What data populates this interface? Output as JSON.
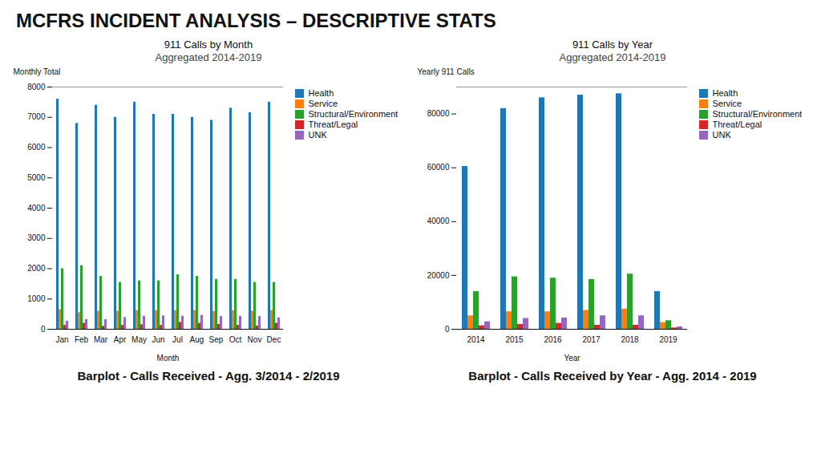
{
  "title": "MCFRS INCIDENT ANALYSIS – DESCRIPTIVE STATS",
  "chart_data": [
    {
      "type": "bar",
      "title": "911 Calls by Month",
      "subtitle": "Aggregated 2014-2019",
      "caption": "Barplot - Calls Received - Agg. 3/2014 - 2/2019",
      "xlabel": "Month",
      "ylabel": "Monthly Total",
      "categories": [
        "Jan",
        "Feb",
        "Mar",
        "Apr",
        "May",
        "Jun",
        "Jul",
        "Aug",
        "Sep",
        "Oct",
        "Nov",
        "Dec"
      ],
      "series": [
        {
          "name": "Health",
          "color": "#1f77b4",
          "values": [
            7600,
            6800,
            7400,
            7000,
            7500,
            7100,
            7100,
            7000,
            6900,
            7300,
            7150,
            7500
          ]
        },
        {
          "name": "Service",
          "color": "#ff7f0e",
          "values": [
            650,
            550,
            600,
            600,
            620,
            620,
            620,
            620,
            590,
            620,
            600,
            620
          ]
        },
        {
          "name": "Structural/Environment",
          "color": "#2ca02c",
          "values": [
            2000,
            2100,
            1750,
            1550,
            1600,
            1600,
            1800,
            1750,
            1650,
            1650,
            1550,
            1550
          ]
        },
        {
          "name": "Threat/Legal",
          "color": "#d62728",
          "values": [
            130,
            200,
            100,
            130,
            150,
            130,
            230,
            200,
            160,
            130,
            110,
            200
          ]
        },
        {
          "name": "UNK",
          "color": "#9467bd",
          "values": [
            270,
            320,
            320,
            390,
            430,
            440,
            430,
            460,
            420,
            430,
            420,
            380
          ]
        }
      ],
      "ylim": [
        0,
        8000
      ],
      "yticks": [
        0,
        1000,
        2000,
        3000,
        4000,
        5000,
        6000,
        7000,
        8000
      ],
      "grid": false,
      "legend": "right"
    },
    {
      "type": "bar",
      "title": "911 Calls by Year",
      "subtitle": "Aggregated 2014-2019",
      "caption": "Barplot - Calls Received by Year - Agg. 2014 - 2019",
      "xlabel": "Year",
      "ylabel": "Yearly 911 Calls",
      "categories": [
        "2014",
        "2015",
        "2016",
        "2017",
        "2018",
        "2019"
      ],
      "series": [
        {
          "name": "Health",
          "color": "#1f77b4",
          "values": [
            60500,
            82000,
            86000,
            87000,
            87500,
            14000
          ]
        },
        {
          "name": "Service",
          "color": "#ff7f0e",
          "values": [
            5000,
            6500,
            6500,
            7000,
            7500,
            2500
          ]
        },
        {
          "name": "Structural/Environment",
          "color": "#2ca02c",
          "values": [
            14000,
            19500,
            19000,
            18500,
            20500,
            3200
          ]
        },
        {
          "name": "Threat/Legal",
          "color": "#d62728",
          "values": [
            1300,
            1800,
            2200,
            1500,
            1500,
            500
          ]
        },
        {
          "name": "UNK",
          "color": "#9467bd",
          "values": [
            2800,
            4000,
            4200,
            5000,
            5000,
            900
          ]
        }
      ],
      "ylim": [
        0,
        90000
      ],
      "yticks": [
        0,
        20000,
        40000,
        60000,
        80000
      ],
      "grid": false,
      "legend": "right"
    }
  ]
}
